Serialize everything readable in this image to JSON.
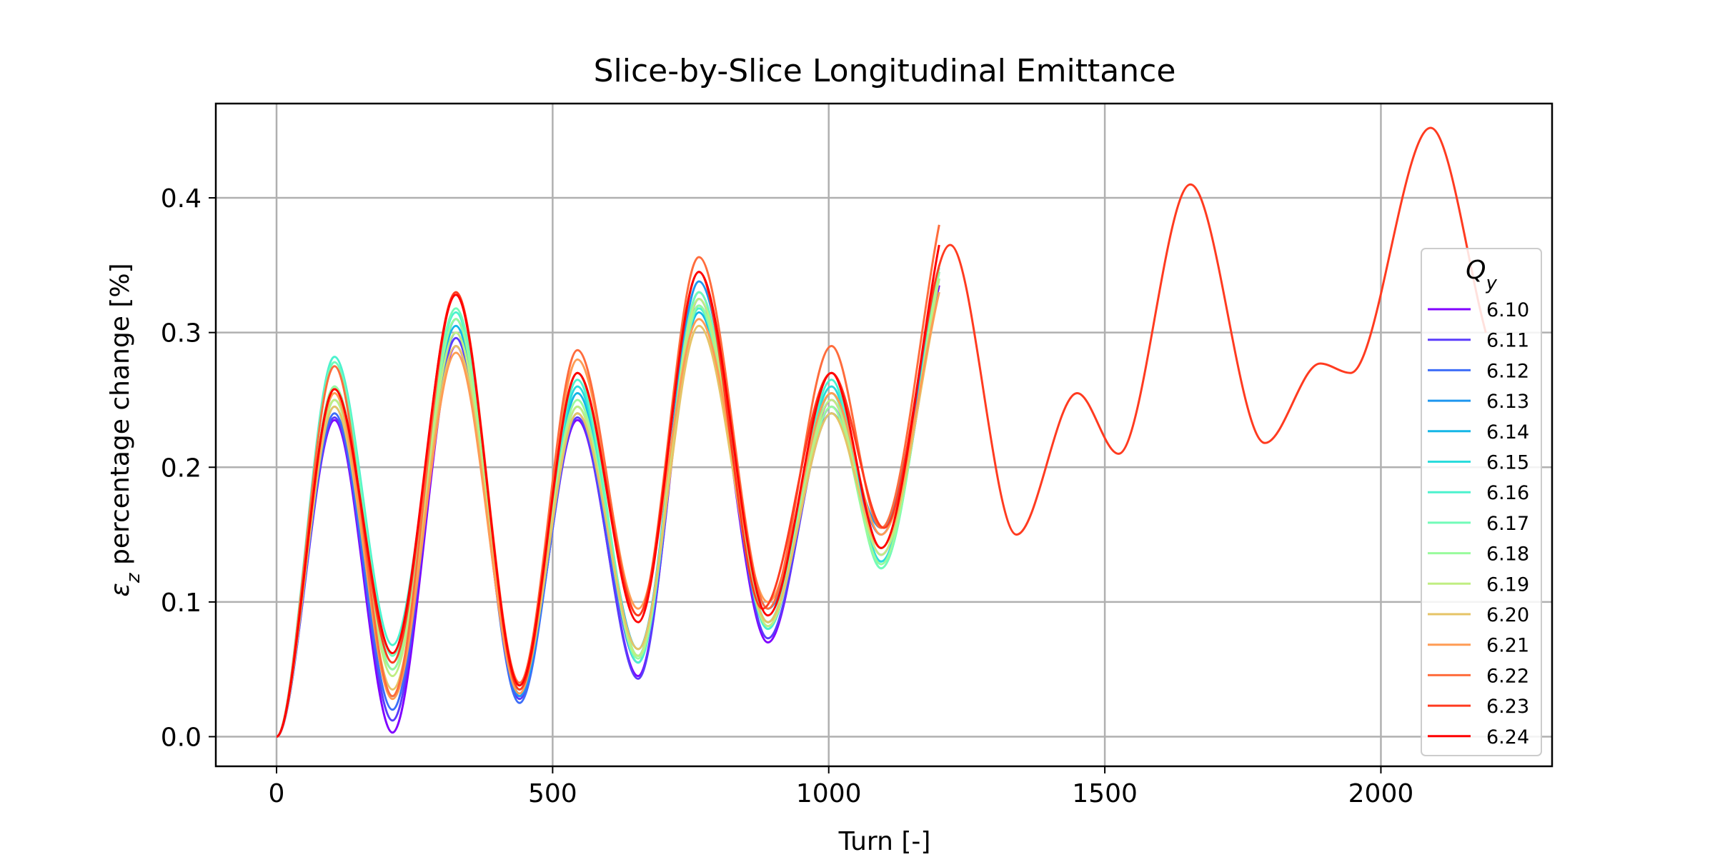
{
  "chart_data": {
    "type": "line",
    "title": "Slice-by-Slice Longitudinal Emittance",
    "xlabel": "Turn [-]",
    "ylabel": {
      "symbol": "ε",
      "subscript": "z",
      "text": " percentage change [%]"
    },
    "xlim": [
      -110,
      2310
    ],
    "ylim": [
      -0.022,
      0.47
    ],
    "xticks": [
      0,
      500,
      1000,
      1500,
      2000
    ],
    "xtick_labels": [
      "0",
      "500",
      "1000",
      "1500",
      "2000"
    ],
    "yticks": [
      0.0,
      0.1,
      0.2,
      0.3,
      0.4
    ],
    "ytick_labels": [
      "0.0",
      "0.1",
      "0.2",
      "0.3",
      "0.4"
    ],
    "grid": true,
    "legend": {
      "title_symbol": "Q",
      "title_subscript": "y",
      "placement": "right"
    },
    "series": [
      {
        "name": "6.10",
        "color": "#8000ff",
        "x": [
          0,
          105,
          210,
          325,
          440,
          545,
          655,
          765,
          890,
          1005,
          1095,
          1200
        ],
        "y": [
          0,
          0.235,
          0.003,
          0.29,
          0.03,
          0.235,
          0.045,
          0.32,
          0.07,
          0.25,
          0.135,
          0.335
        ]
      },
      {
        "name": "6.11",
        "color": "#5a3cfc",
        "x": [
          0,
          105,
          210,
          325,
          440,
          545,
          655,
          765,
          890,
          1005,
          1095,
          1200
        ],
        "y": [
          0,
          0.237,
          0.012,
          0.296,
          0.028,
          0.237,
          0.043,
          0.325,
          0.073,
          0.245,
          0.14,
          0.34
        ]
      },
      {
        "name": "6.12",
        "color": "#3d6df8",
        "x": [
          0,
          105,
          210,
          325,
          440,
          545,
          655,
          765,
          890,
          1005,
          1095,
          1200
        ],
        "y": [
          0,
          0.24,
          0.02,
          0.3,
          0.025,
          0.24,
          0.055,
          0.33,
          0.085,
          0.24,
          0.15,
          0.345
        ]
      },
      {
        "name": "6.13",
        "color": "#1e96ef",
        "x": [
          0,
          105,
          210,
          325,
          440,
          545,
          655,
          765,
          890,
          1005,
          1095,
          1200
        ],
        "y": [
          0,
          0.245,
          0.03,
          0.31,
          0.03,
          0.245,
          0.06,
          0.338,
          0.095,
          0.24,
          0.155,
          0.345
        ]
      },
      {
        "name": "6.14",
        "color": "#14b6e6",
        "x": [
          0,
          105,
          210,
          325,
          440,
          545,
          655,
          765,
          890,
          1005,
          1095,
          1200
        ],
        "y": [
          0,
          0.25,
          0.05,
          0.305,
          0.032,
          0.255,
          0.065,
          0.315,
          0.08,
          0.255,
          0.13,
          0.34
        ]
      },
      {
        "name": "6.15",
        "color": "#2adcdc",
        "x": [
          0,
          105,
          210,
          325,
          440,
          545,
          655,
          765,
          890,
          1005,
          1095,
          1200
        ],
        "y": [
          0,
          0.26,
          0.055,
          0.31,
          0.035,
          0.26,
          0.06,
          0.32,
          0.085,
          0.26,
          0.13,
          0.345
        ]
      },
      {
        "name": "6.16",
        "color": "#4cf2ce",
        "x": [
          0,
          105,
          210,
          325,
          440,
          545,
          655,
          765,
          890,
          1005,
          1095,
          1200
        ],
        "y": [
          0,
          0.282,
          0.068,
          0.315,
          0.038,
          0.265,
          0.055,
          0.318,
          0.08,
          0.265,
          0.125,
          0.35
        ]
      },
      {
        "name": "6.17",
        "color": "#72fbb8",
        "x": [
          0,
          105,
          210,
          325,
          440,
          545,
          655,
          765,
          890,
          1005,
          1095,
          1200
        ],
        "y": [
          0,
          0.278,
          0.06,
          0.318,
          0.04,
          0.27,
          0.06,
          0.33,
          0.085,
          0.255,
          0.125,
          0.348
        ]
      },
      {
        "name": "6.18",
        "color": "#98fb9c",
        "x": [
          0,
          105,
          210,
          325,
          440,
          545,
          655,
          765,
          890,
          1005,
          1095,
          1200
        ],
        "y": [
          0,
          0.26,
          0.05,
          0.31,
          0.038,
          0.25,
          0.058,
          0.32,
          0.082,
          0.245,
          0.128,
          0.345
        ]
      },
      {
        "name": "6.19",
        "color": "#c0ee82",
        "x": [
          0,
          105,
          210,
          325,
          440,
          545,
          655,
          765,
          890,
          1005,
          1095,
          1200
        ],
        "y": [
          0,
          0.25,
          0.045,
          0.3,
          0.035,
          0.245,
          0.06,
          0.325,
          0.082,
          0.25,
          0.135,
          0.34
        ]
      },
      {
        "name": "6.20",
        "color": "#e6c466",
        "x": [
          0,
          105,
          210,
          325,
          440,
          545,
          655,
          765,
          890,
          1005,
          1095,
          1200
        ],
        "y": [
          0,
          0.245,
          0.035,
          0.29,
          0.035,
          0.24,
          0.065,
          0.305,
          0.085,
          0.24,
          0.14,
          0.33
        ]
      },
      {
        "name": "6.21",
        "color": "#ff9c54",
        "x": [
          0,
          105,
          210,
          325,
          440,
          545,
          655,
          765,
          890,
          1005,
          1095,
          1200
        ],
        "y": [
          0,
          0.255,
          0.028,
          0.285,
          0.032,
          0.28,
          0.095,
          0.31,
          0.1,
          0.255,
          0.15,
          0.33
        ]
      },
      {
        "name": "6.22",
        "color": "#ff6c3c",
        "x": [
          0,
          105,
          210,
          325,
          440,
          545,
          655,
          765,
          890,
          1005,
          1095,
          1200
        ],
        "y": [
          0,
          0.275,
          0.03,
          0.33,
          0.04,
          0.287,
          0.09,
          0.356,
          0.095,
          0.29,
          0.155,
          0.38
        ]
      },
      {
        "name": "6.23",
        "color": "#ff3b20",
        "x": [
          0,
          105,
          210,
          325,
          440,
          545,
          655,
          765,
          880,
          1005,
          1100,
          1220,
          1340,
          1450,
          1525,
          1655,
          1790,
          1890,
          1945,
          2090,
          2190
        ],
        "y": [
          0,
          0.258,
          0.055,
          0.33,
          0.035,
          0.27,
          0.09,
          0.345,
          0.095,
          0.27,
          0.155,
          0.365,
          0.15,
          0.255,
          0.21,
          0.41,
          0.218,
          0.277,
          0.27,
          0.452,
          0.3
        ]
      },
      {
        "name": "6.24",
        "color": "#ff0000",
        "x": [
          0,
          105,
          210,
          325,
          440,
          545,
          655,
          765,
          890,
          1005,
          1095,
          1200
        ],
        "y": [
          0,
          0.258,
          0.062,
          0.328,
          0.038,
          0.27,
          0.085,
          0.345,
          0.09,
          0.27,
          0.14,
          0.365
        ]
      }
    ]
  }
}
